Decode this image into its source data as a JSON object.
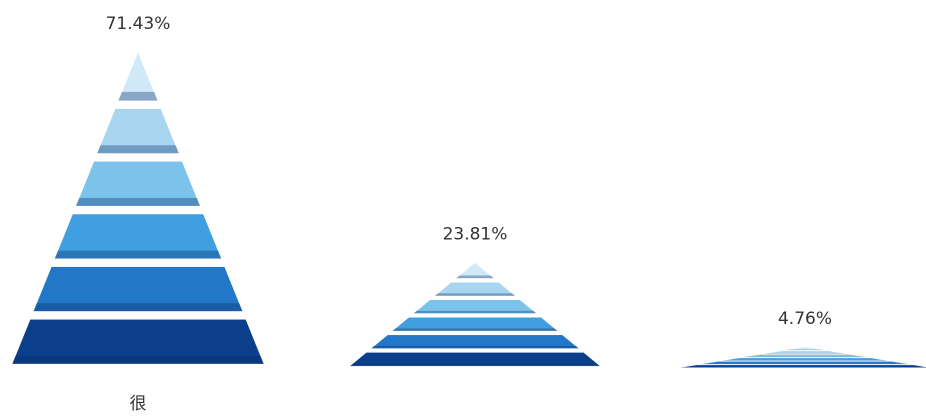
{
  "chart_data": {
    "type": "pyramid",
    "categories": [
      "很",
      null,
      null
    ],
    "values": [
      71.43,
      23.81,
      4.76
    ],
    "value_labels": [
      "71.43%",
      "23.81%",
      "4.76%"
    ],
    "colors": [
      "#cfe9f9",
      "#a8d6f1",
      "#7cc3ec",
      "#3f9fe0",
      "#2377c9",
      "#0b3f8c"
    ]
  }
}
